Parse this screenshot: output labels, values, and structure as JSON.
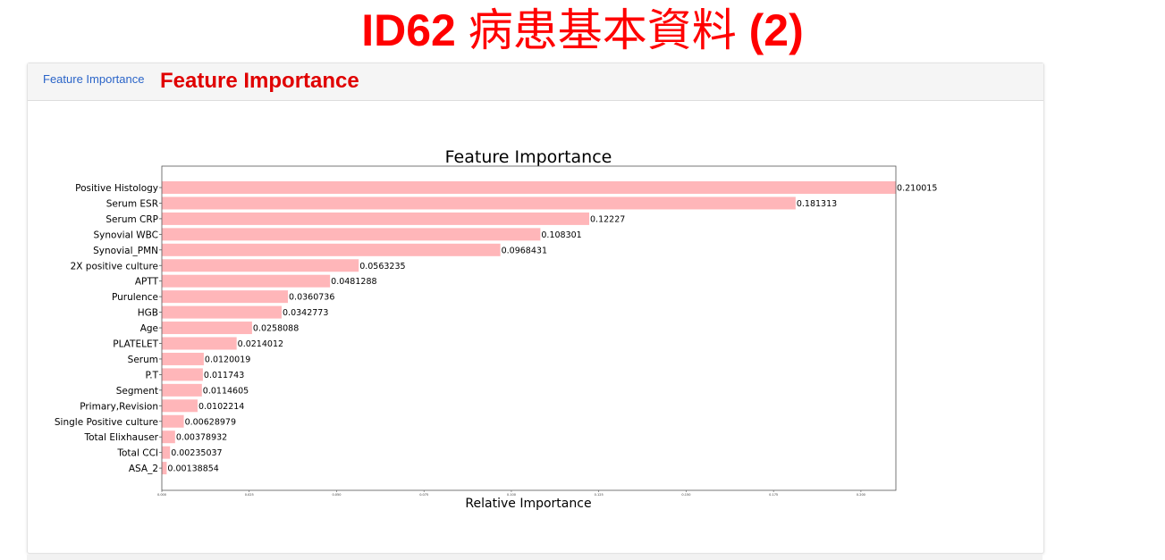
{
  "slide_title": {
    "prefix": "ID62",
    "chinese": "病患基本資料",
    "suffix": "(2)"
  },
  "card": {
    "tab_label": "Feature Importance",
    "overlay_title": "Feature Importance"
  },
  "colors": {
    "title_red": "#ff0000",
    "tab_blue": "#2a64c8",
    "bar_fill": "#ffb6b9"
  },
  "chart_data": {
    "type": "bar",
    "orientation": "horizontal",
    "title": "Feature Importance",
    "xlabel": "Relative Importance",
    "ylabel": "",
    "xlim": [
      0,
      0.21
    ],
    "x_ticks": [
      "0.000",
      "0.025",
      "0.050",
      "0.075",
      "0.100",
      "0.125",
      "0.150",
      "0.175",
      "0.200"
    ],
    "grid": false,
    "categories": [
      "Positive Histology",
      "Serum ESR",
      "Serum CRP",
      "Synovial WBC",
      "Synovial_PMN",
      "2X positive culture",
      "APTT",
      "Purulence",
      "HGB",
      "Age",
      "PLATELET",
      "Serum",
      "P.T",
      "Segment",
      "Primary,Revision",
      "Single Positive culture",
      "Total Elixhauser",
      "Total CCI",
      "ASA_2"
    ],
    "values": [
      0.210015,
      0.181313,
      0.12227,
      0.108301,
      0.0968431,
      0.0563235,
      0.0481288,
      0.0360736,
      0.0342773,
      0.0258088,
      0.0214012,
      0.0120019,
      0.011743,
      0.0114605,
      0.0102214,
      0.00628979,
      0.00378932,
      0.00235037,
      0.00138854
    ],
    "value_labels": [
      "0.210015",
      "0.181313",
      "0.12227",
      "0.108301",
      "0.0968431",
      "0.0563235",
      "0.0481288",
      "0.0360736",
      "0.0342773",
      "0.0258088",
      "0.0214012",
      "0.0120019",
      "0.011743",
      "0.0114605",
      "0.0102214",
      "0.00628979",
      "0.00378932",
      "0.00235037",
      "0.00138854"
    ]
  }
}
